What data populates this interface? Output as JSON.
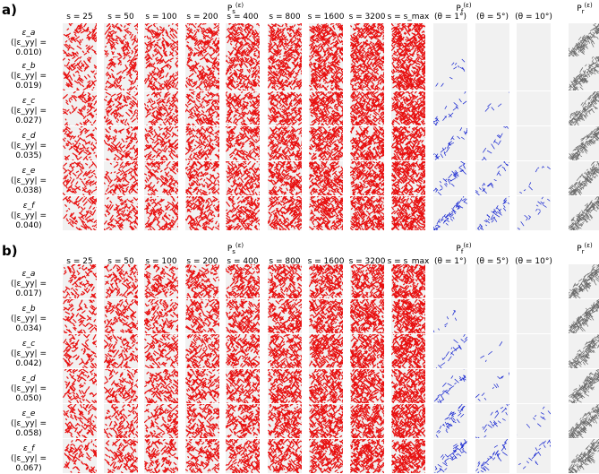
{
  "panels": [
    {
      "label": "a)",
      "group_headers": {
        "Ps": "P_s^(ε)",
        "Pf": "P_f^(ε)",
        "Pr": "P_r^(ε)"
      },
      "column_headers": [
        "s = 25",
        "s = 50",
        "s = 100",
        "s = 200",
        "s = 400",
        "s = 800",
        "s = 1600",
        "s = 3200",
        "s = s_max",
        "(θ = 1°)",
        "(θ = 5°)",
        "(θ = 10°)"
      ],
      "rows": [
        {
          "strain": "ε_a",
          "value": "(|ε_yy| = 0.010)"
        },
        {
          "strain": "ε_b",
          "value": "(|ε_yy| = 0.019)"
        },
        {
          "strain": "ε_c",
          "value": "(|ε_yy| = 0.027)"
        },
        {
          "strain": "ε_d",
          "value": "(|ε_yy| = 0.035)"
        },
        {
          "strain": "ε_e",
          "value": "(|ε_yy| = 0.038)"
        },
        {
          "strain": "ε_f",
          "value": "(|ε_yy| = 0.040)"
        }
      ]
    },
    {
      "label": "b)",
      "group_headers": {
        "Ps": "P_s^(ε)",
        "Pf": "P_f^(ε)",
        "Pr": "P_r^(ε)"
      },
      "column_headers": [
        "s = 25",
        "s = 50",
        "s = 100",
        "s = 200",
        "s = 400",
        "s = 800",
        "s = 1600",
        "s = 3200",
        "s = s_max",
        "(θ = 1°)",
        "(θ = 5°)",
        "(θ = 10°)"
      ],
      "rows": [
        {
          "strain": "ε_a",
          "value": "(|ε_yy| = 0.017)"
        },
        {
          "strain": "ε_b",
          "value": "(|ε_yy| = 0.034)"
        },
        {
          "strain": "ε_c",
          "value": "(|ε_yy| = 0.042)"
        },
        {
          "strain": "ε_d",
          "value": "(|ε_yy| = 0.050)"
        },
        {
          "strain": "ε_e",
          "value": "(|ε_yy| = 0.058)"
        },
        {
          "strain": "ε_f",
          "value": "(|ε_yy| = 0.067)"
        }
      ]
    }
  ],
  "colors": {
    "Ps": "#e81010",
    "Pf": "#1020d0",
    "Pr": "#6a6a6a",
    "bg": "#f1f1f1"
  }
}
